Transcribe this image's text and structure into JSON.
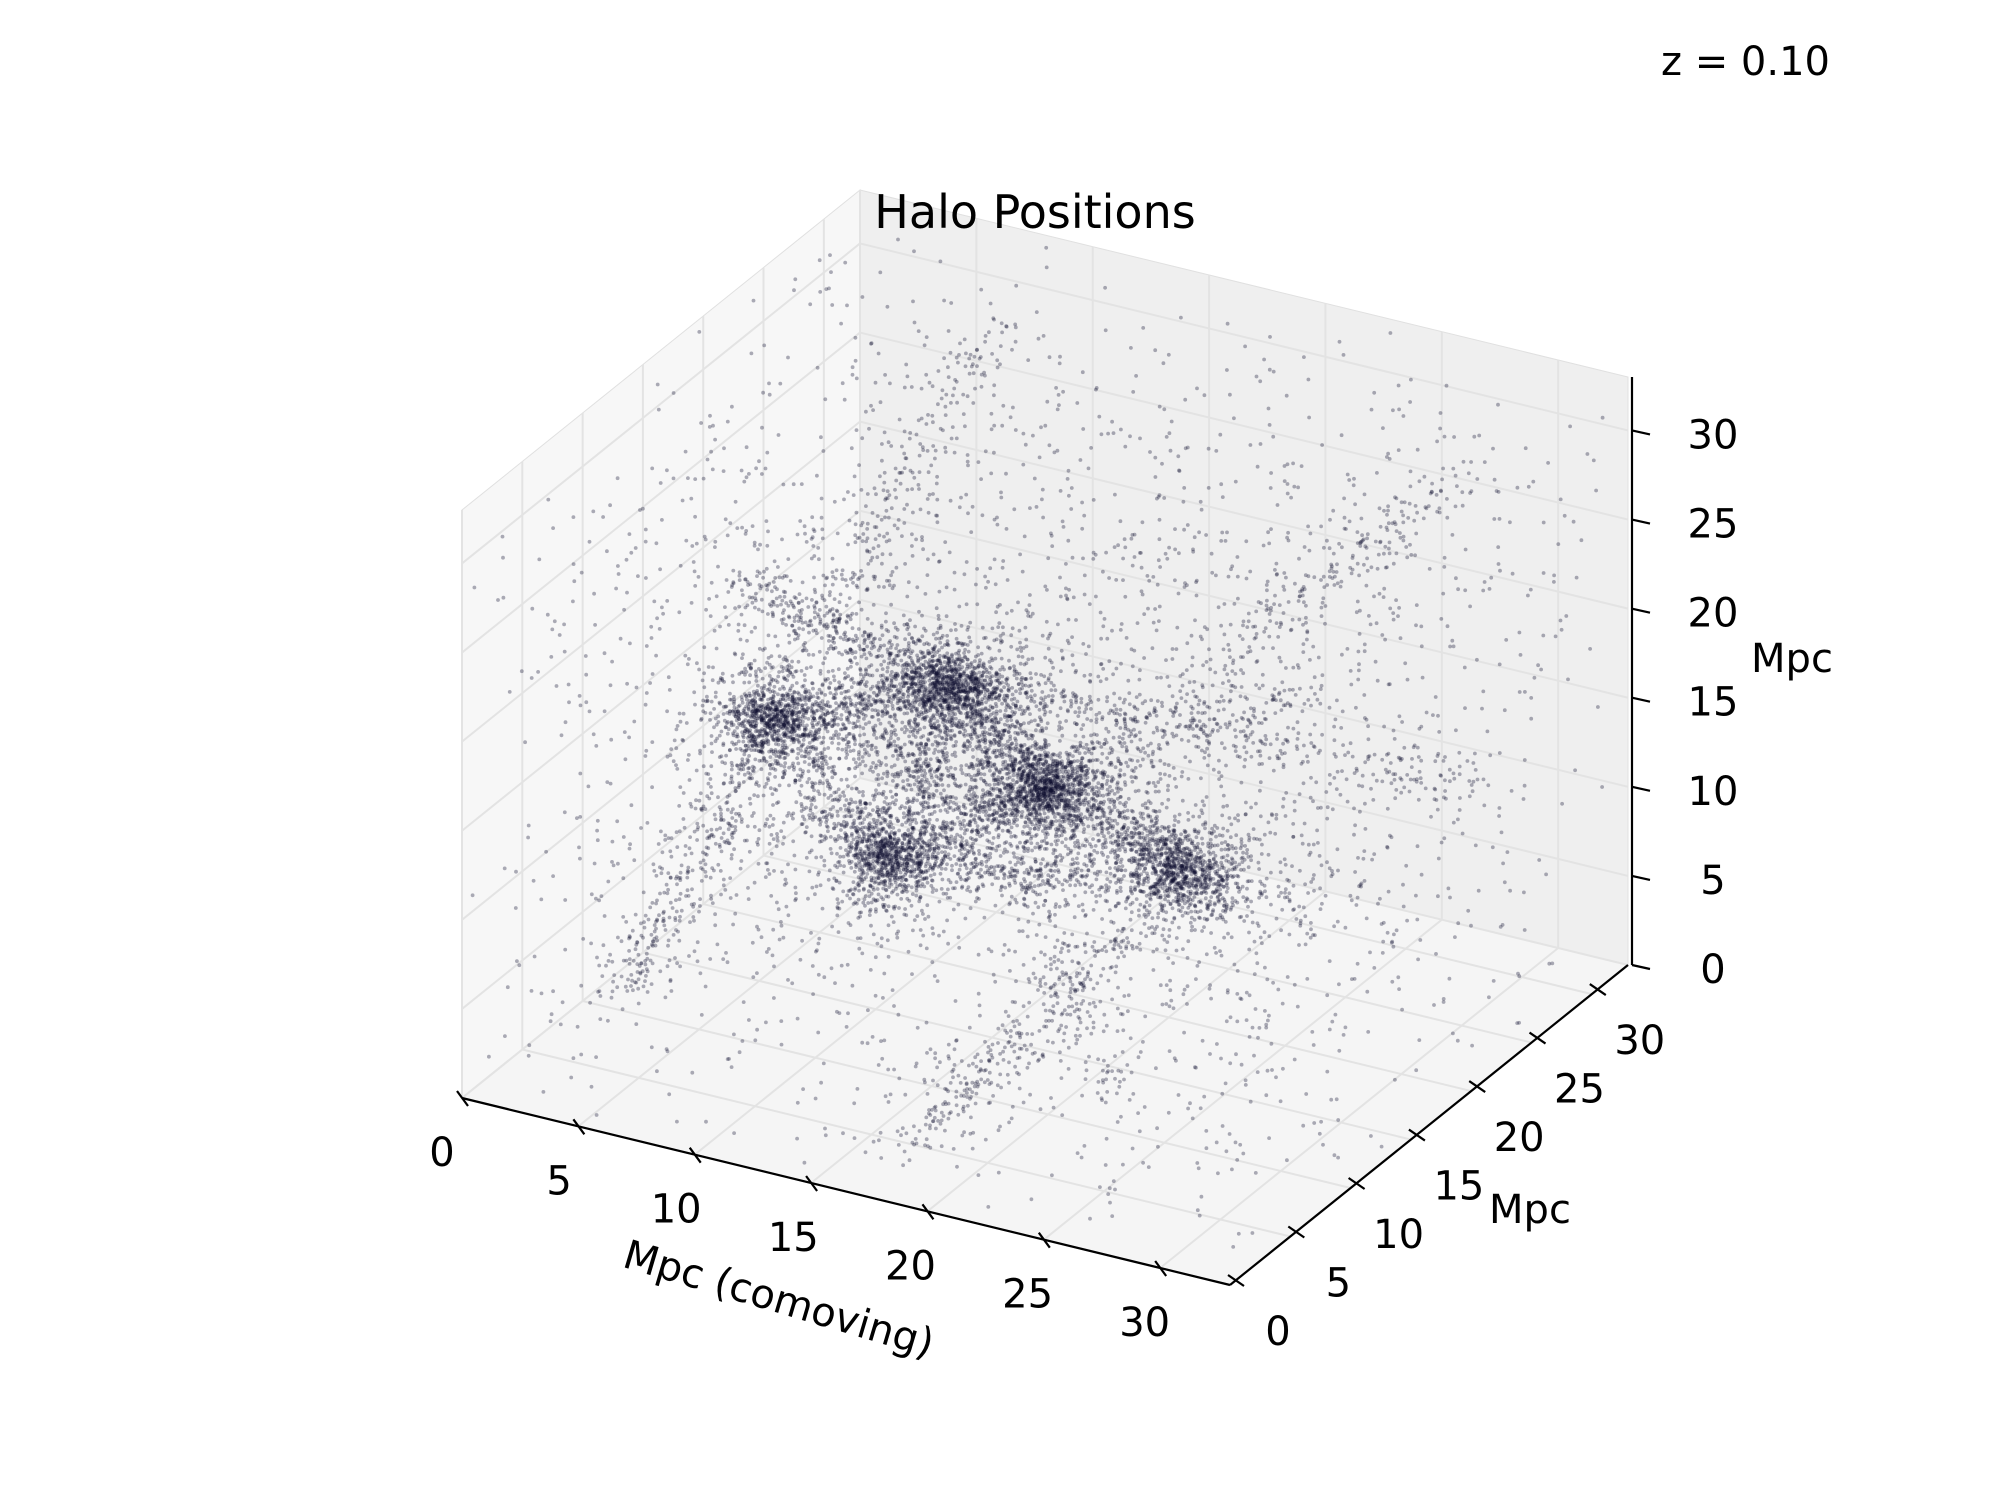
{
  "redshift_label": "z = 0.10",
  "chart_data": {
    "type": "scatter",
    "projection": "3d",
    "title": "Halo Positions",
    "xlabel": "Mpc (comoving)",
    "ylabel": "Mpc",
    "zlabel": "Mpc",
    "xlim": [
      0,
      33
    ],
    "ylim": [
      0,
      33
    ],
    "zlim": [
      0,
      33
    ],
    "xticks": [
      "0",
      "5",
      "10",
      "15",
      "20",
      "25",
      "30"
    ],
    "yticks": [
      "0",
      "5",
      "10",
      "15",
      "20",
      "25",
      "30"
    ],
    "zticks": [
      "0",
      "5",
      "10",
      "15",
      "20",
      "25",
      "30"
    ],
    "grid": true,
    "legend": "none",
    "marker_color": "#0d0d2e",
    "pane_color": "#f2f2f2",
    "approx_point_count": 12000,
    "dense_clusters": [
      {
        "x": 12,
        "y": 17,
        "z": 18
      },
      {
        "x": 7,
        "y": 12,
        "z": 17
      },
      {
        "x": 17,
        "y": 16,
        "z": 14
      },
      {
        "x": 13,
        "y": 10,
        "z": 12
      },
      {
        "x": 22,
        "y": 18,
        "z": 10
      }
    ]
  }
}
